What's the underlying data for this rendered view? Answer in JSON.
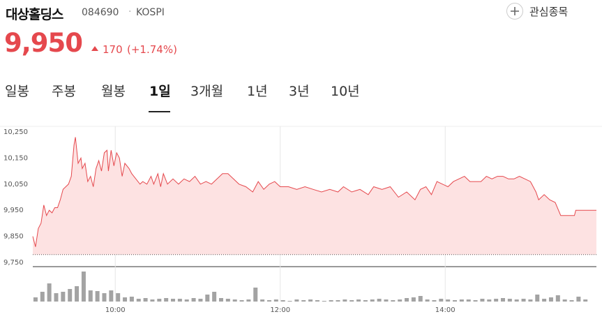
{
  "header": {
    "name": "대상홀딩스",
    "code": "084690",
    "market": "KOSPI",
    "price": "9,950",
    "change": "170",
    "change_pct": "(+1.74%)",
    "watch_label": "관심종목"
  },
  "tabs": {
    "items": [
      "일봉",
      "주봉",
      "월봉",
      "1일",
      "3개월",
      "1년",
      "3년",
      "10년"
    ],
    "selected": 3
  },
  "chart_data": {
    "type": "line",
    "x": [
      "09:00",
      "09:02",
      "09:04",
      "09:06",
      "09:08",
      "09:10",
      "09:12",
      "09:14",
      "09:16",
      "09:18",
      "09:20",
      "09:22",
      "09:24",
      "09:26",
      "09:28",
      "09:30",
      "09:31",
      "09:33",
      "09:35",
      "09:36",
      "09:38",
      "09:40",
      "09:42",
      "09:44",
      "09:46",
      "09:48",
      "09:50",
      "09:52",
      "09:54",
      "09:55",
      "09:57",
      "09:59",
      "10:01",
      "10:03",
      "10:05",
      "10:07",
      "10:10",
      "10:12",
      "10:15",
      "10:18",
      "10:20",
      "10:23",
      "10:26",
      "10:28",
      "10:31",
      "10:33",
      "10:35",
      "10:38",
      "10:42",
      "10:46",
      "10:50",
      "10:54",
      "10:58",
      "11:02",
      "11:06",
      "11:10",
      "11:14",
      "11:18",
      "11:22",
      "11:26",
      "11:30",
      "11:35",
      "11:40",
      "11:44",
      "11:48",
      "11:52",
      "11:56",
      "12:00",
      "12:06",
      "12:12",
      "12:18",
      "12:24",
      "12:30",
      "12:36",
      "12:42",
      "12:46",
      "12:52",
      "12:58",
      "13:04",
      "13:08",
      "13:14",
      "13:20",
      "13:26",
      "13:32",
      "13:38",
      "13:42",
      "13:46",
      "13:50",
      "13:54",
      "13:58",
      "14:02",
      "14:06",
      "14:10",
      "14:14",
      "14:18",
      "14:22",
      "14:26",
      "14:30",
      "14:34",
      "14:38",
      "14:42",
      "14:46",
      "14:50",
      "14:54",
      "14:58",
      "15:02",
      "15:06",
      "15:08",
      "15:12",
      "15:16",
      "15:20",
      "15:24",
      "15:34",
      "15:35",
      "15:50"
    ],
    "series": [
      {
        "color": "#e5484d",
        "values": [
          9850,
          9810,
          9880,
          9900,
          9970,
          9930,
          9950,
          9940,
          9960,
          9960,
          9990,
          10030,
          10040,
          10050,
          10080,
          10200,
          10230,
          10130,
          10150,
          10110,
          10130,
          10060,
          10080,
          10040,
          10110,
          10140,
          10100,
          10170,
          10180,
          10100,
          10180,
          10120,
          10170,
          10150,
          10080,
          10130,
          10110,
          10090,
          10070,
          10050,
          10060,
          10050,
          10080,
          10050,
          10090,
          10040,
          10090,
          10050,
          10070,
          10050,
          10070,
          10060,
          10080,
          10050,
          10060,
          10050,
          10070,
          10090,
          10090,
          10070,
          10050,
          10040,
          10020,
          10060,
          10030,
          10050,
          10060,
          10040,
          10040,
          10030,
          10040,
          10030,
          10020,
          10030,
          10020,
          10040,
          10020,
          10030,
          10010,
          10040,
          10030,
          10040,
          10000,
          10020,
          9990,
          10030,
          10040,
          10010,
          10060,
          10050,
          10040,
          10060,
          10070,
          10080,
          10060,
          10060,
          10060,
          10080,
          10070,
          10080,
          10080,
          10070,
          10070,
          10080,
          10070,
          10060,
          10020,
          9990,
          10010,
          9990,
          9980,
          9930,
          9930,
          9950,
          9950
        ]
      }
    ],
    "fill_color": "#fde2e2",
    "base_value": 9780,
    "xlim": [
      "09:00",
      "15:50"
    ],
    "xticks": [
      "10:00",
      "12:00",
      "14:00"
    ],
    "ylim": [
      9750,
      10250
    ],
    "yticks": [
      {
        "value": 10250,
        "label": "10,250"
      },
      {
        "value": 10150,
        "label": "10,150"
      },
      {
        "value": 10050,
        "label": "10,050"
      },
      {
        "value": 9950,
        "label": "9,950"
      },
      {
        "value": 9850,
        "label": "9,850"
      },
      {
        "value": 9750,
        "label": "9,750"
      }
    ],
    "volume": {
      "type": "bar",
      "color": "#a3a3a3",
      "x": [
        "09:02",
        "09:07",
        "09:12",
        "09:17",
        "09:22",
        "09:27",
        "09:32",
        "09:37",
        "09:42",
        "09:47",
        "09:52",
        "09:57",
        "10:02",
        "10:07",
        "10:12",
        "10:17",
        "10:22",
        "10:27",
        "10:32",
        "10:37",
        "10:42",
        "10:47",
        "10:52",
        "10:57",
        "11:02",
        "11:07",
        "11:12",
        "11:17",
        "11:22",
        "11:27",
        "11:32",
        "11:37",
        "11:42",
        "11:47",
        "11:52",
        "11:57",
        "12:02",
        "12:07",
        "12:12",
        "12:17",
        "12:22",
        "12:27",
        "12:32",
        "12:37",
        "12:42",
        "12:47",
        "12:52",
        "12:57",
        "13:02",
        "13:07",
        "13:12",
        "13:17",
        "13:22",
        "13:27",
        "13:32",
        "13:37",
        "13:42",
        "13:47",
        "13:52",
        "13:57",
        "14:02",
        "14:07",
        "14:12",
        "14:17",
        "14:22",
        "14:27",
        "14:32",
        "14:37",
        "14:42",
        "14:47",
        "14:52",
        "14:57",
        "15:02",
        "15:07",
        "15:12",
        "15:17",
        "15:22",
        "15:27",
        "15:32",
        "15:37",
        "15:42"
      ],
      "values": [
        6,
        14,
        26,
        12,
        14,
        18,
        22,
        43,
        16,
        15,
        12,
        16,
        12,
        6,
        7,
        4,
        5,
        3,
        4,
        5,
        4,
        4,
        3,
        5,
        4,
        10,
        14,
        5,
        4,
        3,
        2,
        3,
        20,
        3,
        2,
        3,
        2,
        1,
        3,
        2,
        3,
        2,
        1,
        2,
        2,
        3,
        2,
        3,
        2,
        3,
        4,
        3,
        2,
        3,
        5,
        6,
        8,
        3,
        2,
        4,
        3,
        2,
        3,
        3,
        2,
        4,
        3,
        4,
        5,
        4,
        3,
        4,
        3,
        10,
        4,
        6,
        9,
        3,
        2,
        7,
        3
      ]
    }
  }
}
